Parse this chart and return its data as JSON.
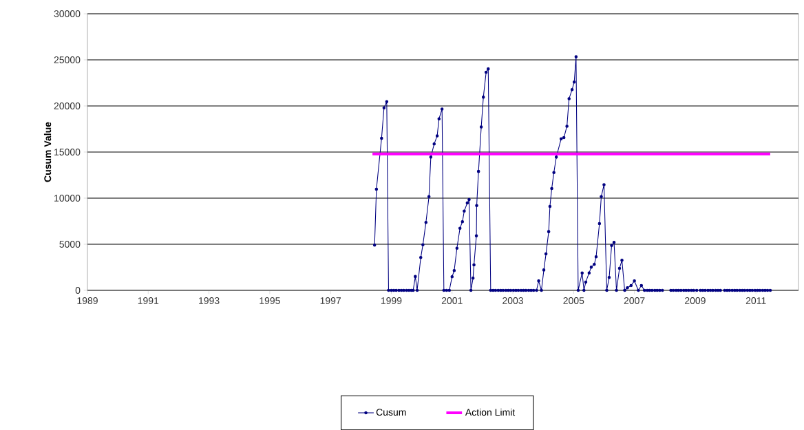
{
  "chart_data": {
    "type": "line",
    "ylabel": "Cusum Value",
    "xlim": [
      1989,
      2012.4
    ],
    "xticks": [
      1989,
      1991,
      1993,
      1995,
      1997,
      1999,
      2001,
      2003,
      2005,
      2007,
      2009,
      2011
    ],
    "ylim": [
      0,
      30000
    ],
    "yticks": [
      0,
      5000,
      10000,
      15000,
      20000,
      25000,
      30000
    ],
    "grid": "y",
    "legend": "bottom",
    "marker": "circle",
    "series": [
      {
        "name": "Cusum",
        "color": "#000080",
        "x": [
          1998.45,
          1998.51,
          1998.68,
          1998.76,
          1998.85,
          1998.91,
          1999.0,
          1999.08,
          1999.16,
          1999.25,
          1999.33,
          1999.41,
          1999.5,
          1999.58,
          1999.66,
          1999.72,
          1999.79,
          1999.85,
          1999.97,
          2000.04,
          2000.14,
          2000.24,
          2000.3,
          2000.41,
          2000.51,
          2000.57,
          2000.67,
          2000.73,
          2000.82,
          2000.91,
          2001.0,
          2001.07,
          2001.16,
          2001.26,
          2001.34,
          2001.4,
          2001.5,
          2001.56,
          2001.62,
          2001.69,
          2001.72,
          2001.8,
          2001.81,
          2001.87,
          2001.96,
          2002.03,
          2002.12,
          2002.19,
          2002.27,
          2002.35,
          2002.43,
          2002.52,
          2002.6,
          2002.68,
          2002.77,
          2002.85,
          2002.93,
          2003.02,
          2003.1,
          2003.18,
          2003.27,
          2003.35,
          2003.43,
          2003.52,
          2003.6,
          2003.68,
          2003.78,
          2003.85,
          2003.94,
          2004.02,
          2004.09,
          2004.18,
          2004.22,
          2004.28,
          2004.35,
          2004.43,
          2004.59,
          2004.68,
          2004.78,
          2004.85,
          2004.95,
          2005.02,
          2005.08,
          2005.15,
          2005.28,
          2005.34,
          2005.4,
          2005.51,
          2005.58,
          2005.68,
          2005.74,
          2005.85,
          2005.91,
          2006.0,
          2006.09,
          2006.17,
          2006.25,
          2006.33,
          2006.41,
          2006.51,
          2006.59,
          2006.68,
          2006.77,
          2006.89,
          2007.0,
          2007.13,
          2007.23,
          2007.33,
          2007.42,
          2007.5,
          2007.58,
          2007.67,
          2007.75,
          2007.83,
          2007.92,
          2008.05,
          2008.2,
          2008.28,
          2008.37,
          2008.45,
          2008.53,
          2008.62,
          2008.7,
          2008.78,
          2008.87,
          2008.95,
          2009.05,
          2009.1,
          2009.17,
          2009.25,
          2009.33,
          2009.42,
          2009.5,
          2009.58,
          2009.67,
          2009.75,
          2009.83,
          2009.9,
          2009.97,
          2010.05,
          2010.13,
          2010.22,
          2010.3,
          2010.38,
          2010.47,
          2010.55,
          2010.63,
          2010.72,
          2010.8,
          2010.88,
          2010.97,
          2011.05,
          2011.13,
          2011.22,
          2011.3,
          2011.38,
          2011.47
        ],
        "values": [
          4900,
          10970,
          16500,
          19800,
          20460,
          0,
          0,
          0,
          0,
          0,
          0,
          0,
          0,
          0,
          0,
          0,
          1500,
          0,
          3560,
          4950,
          7360,
          10170,
          14450,
          15870,
          16760,
          18600,
          19670,
          0,
          0,
          0,
          1470,
          2140,
          4570,
          6740,
          7440,
          8600,
          9470,
          9850,
          0,
          1320,
          2760,
          5920,
          9200,
          12900,
          17730,
          20960,
          23650,
          24020,
          0,
          0,
          0,
          0,
          0,
          0,
          0,
          0,
          0,
          0,
          0,
          0,
          0,
          0,
          0,
          0,
          0,
          0,
          0,
          1020,
          0,
          2210,
          3950,
          6370,
          9100,
          11040,
          12780,
          14450,
          16440,
          16560,
          17800,
          20790,
          21780,
          22600,
          25340,
          0,
          1890,
          0,
          900,
          1890,
          2510,
          2810,
          3630,
          7240,
          10170,
          11460,
          0,
          1390,
          4870,
          5200,
          0,
          2390,
          3260,
          0,
          280,
          520,
          1020,
          0,
          520,
          0,
          0,
          0,
          0,
          0,
          0,
          0,
          0,
          null,
          0,
          0,
          0,
          0,
          0,
          0,
          0,
          0,
          0,
          0,
          0,
          null,
          0,
          0,
          0,
          0,
          0,
          0,
          0,
          0,
          0,
          null,
          0,
          0,
          0,
          0,
          0,
          0,
          0,
          0,
          0,
          0,
          0,
          0,
          0,
          0,
          0,
          0,
          0,
          0,
          0
        ]
      },
      {
        "name": "Action Limit",
        "color": "#ff00ff",
        "marker": "none",
        "x": [
          1998.38,
          2011.47
        ],
        "values": [
          14800,
          14800
        ]
      }
    ]
  }
}
